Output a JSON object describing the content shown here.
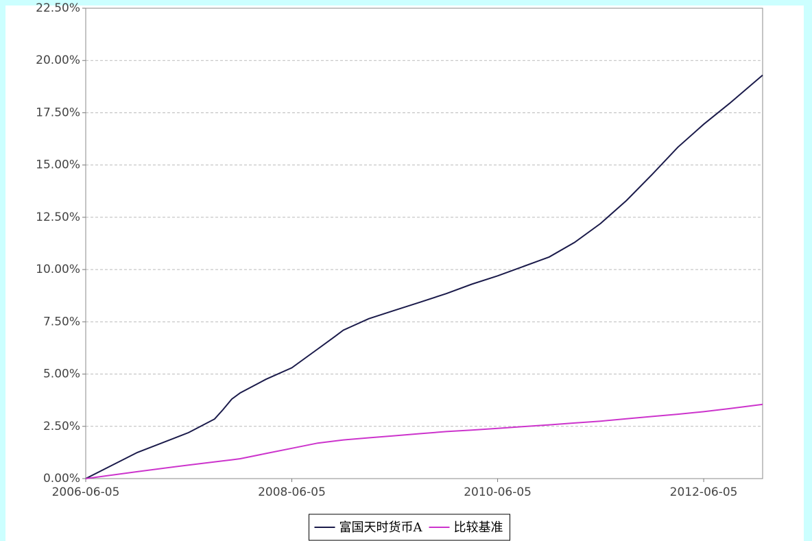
{
  "chart_data": {
    "type": "line",
    "x": [
      "2006-06-05",
      "2006-12-05",
      "2007-06-05",
      "2007-09-05",
      "2007-10-05",
      "2007-11-05",
      "2007-12-05",
      "2008-03-05",
      "2008-06-05",
      "2008-09-05",
      "2008-11-05",
      "2008-12-05",
      "2009-03-05",
      "2009-06-05",
      "2009-09-05",
      "2009-12-05",
      "2010-03-05",
      "2010-06-05",
      "2010-09-05",
      "2010-12-05",
      "2011-03-05",
      "2011-06-05",
      "2011-09-05",
      "2011-12-05",
      "2012-03-05",
      "2012-06-05",
      "2012-09-05",
      "2012-12-31"
    ],
    "series": [
      {
        "name": "富国天时货币A",
        "color": "#1a1a4a",
        "values": [
          0,
          1.25,
          2.2,
          2.85,
          3.3,
          3.8,
          4.1,
          4.75,
          5.3,
          6.2,
          6.8,
          7.1,
          7.65,
          8.05,
          8.45,
          8.85,
          9.3,
          9.7,
          10.15,
          10.6,
          11.3,
          12.2,
          13.3,
          14.55,
          15.85,
          16.95,
          17.95,
          19.3
        ]
      },
      {
        "name": "比较基准",
        "color": "#cc33cc",
        "values": [
          0,
          0.33,
          0.65,
          0.8,
          0.85,
          0.9,
          0.95,
          1.2,
          1.45,
          1.7,
          1.8,
          1.85,
          1.95,
          2.05,
          2.15,
          2.25,
          2.32,
          2.4,
          2.49,
          2.57,
          2.66,
          2.75,
          2.86,
          2.97,
          3.08,
          3.2,
          3.35,
          3.55
        ]
      }
    ],
    "xlim": [
      "2006-06-05",
      "2012-12-31"
    ],
    "xticks": [
      "2006-06-05",
      "2008-06-05",
      "2010-06-05",
      "2012-06-05"
    ],
    "ylim": [
      0,
      22.5
    ],
    "yticks": [
      {
        "value": 0,
        "label": "0.00%"
      },
      {
        "value": 2.5,
        "label": "2.50%"
      },
      {
        "value": 5,
        "label": "5.00%"
      },
      {
        "value": 7.5,
        "label": "7.50%"
      },
      {
        "value": 10,
        "label": "10.00%"
      },
      {
        "value": 12.5,
        "label": "12.50%"
      },
      {
        "value": 15,
        "label": "15.00%"
      },
      {
        "value": 17.5,
        "label": "17.50%"
      },
      {
        "value": 20,
        "label": "20.00%"
      },
      {
        "value": 22.5,
        "label": "22.50%"
      }
    ],
    "grid": true
  }
}
